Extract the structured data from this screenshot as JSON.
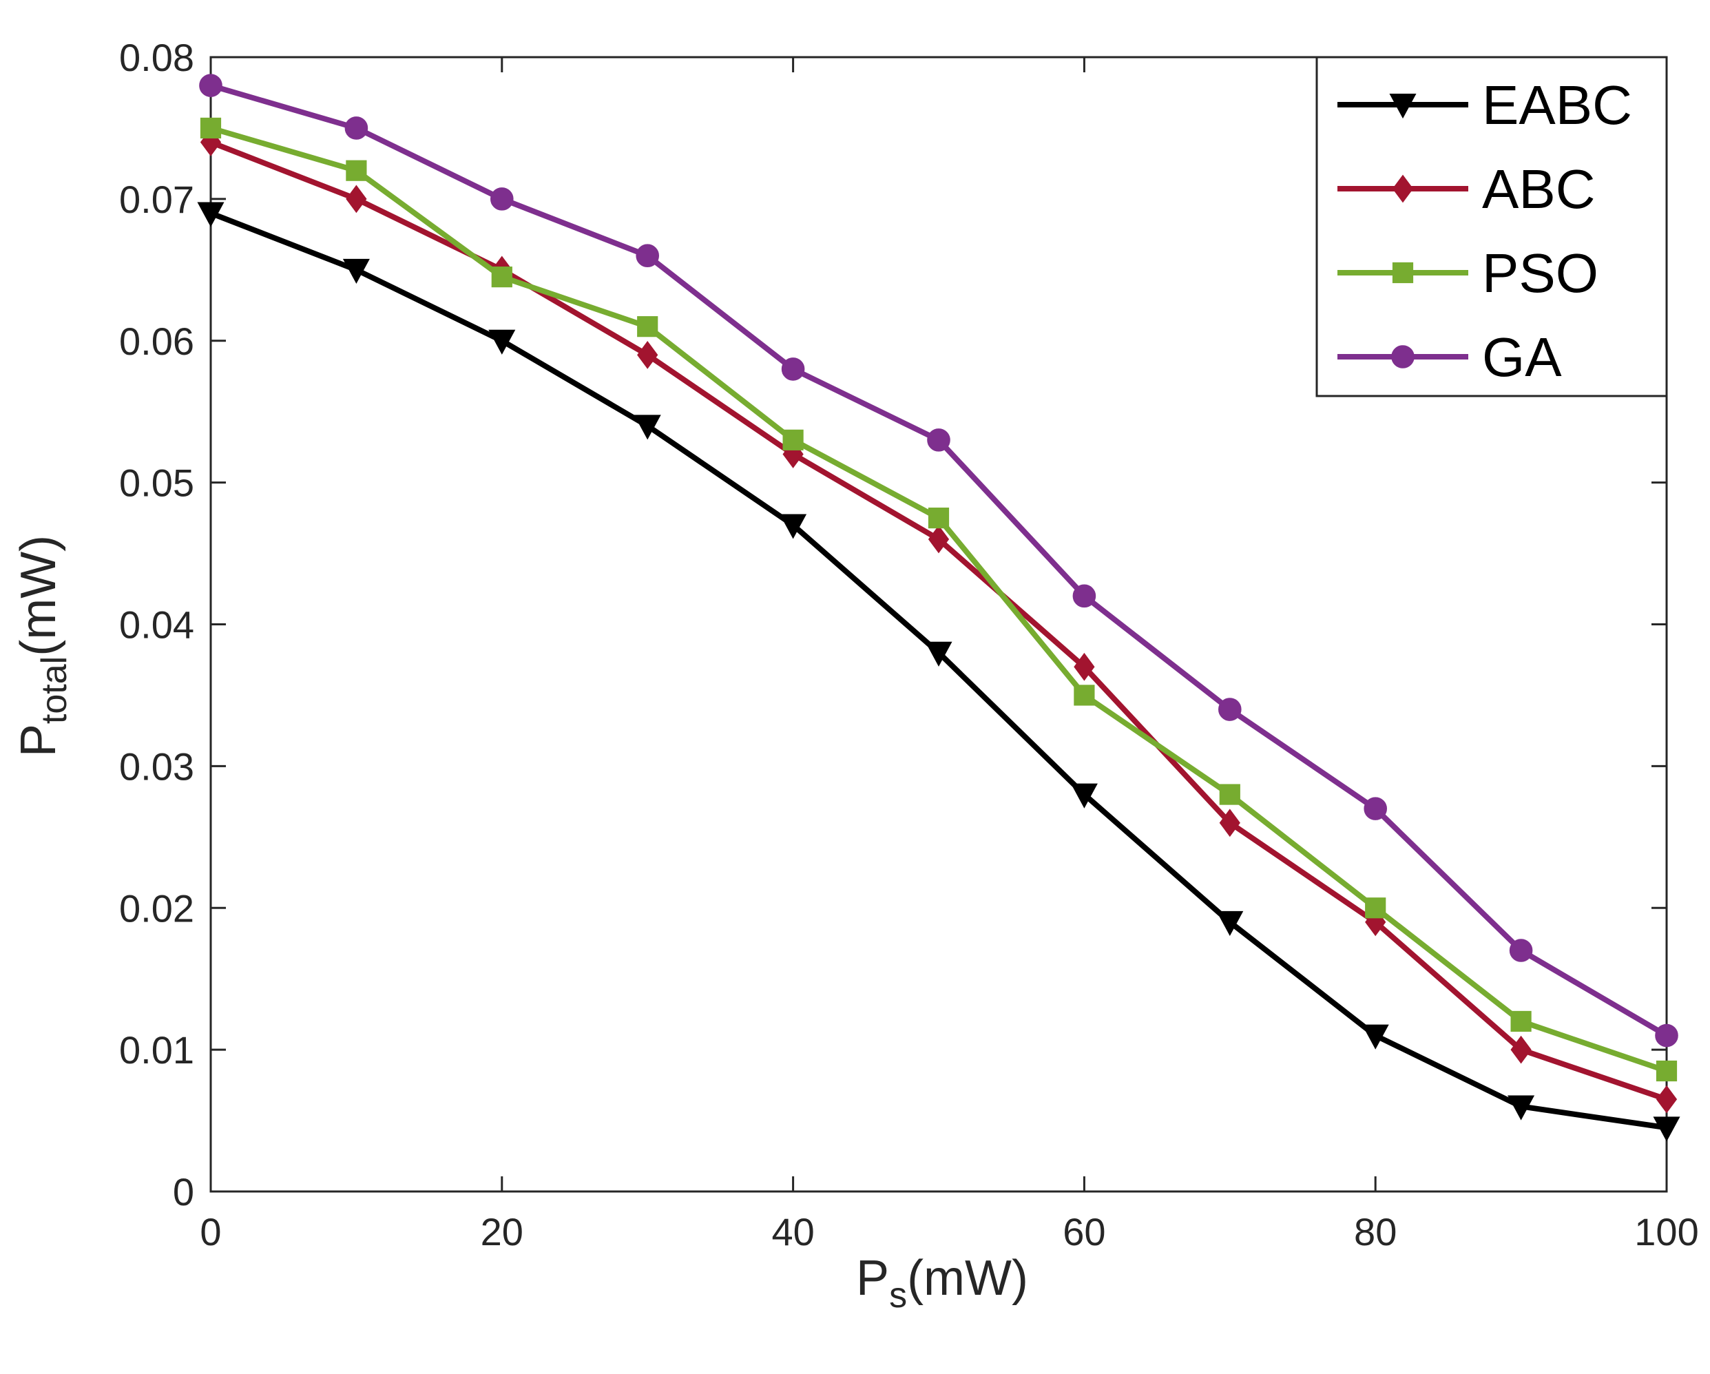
{
  "chart_data": {
    "type": "line",
    "title": "",
    "xlabel": {
      "main": "P",
      "sub": "s",
      "unit": "(mW)"
    },
    "ylabel": {
      "main": "P",
      "sub": "total",
      "unit": "(mW)"
    },
    "xlim": [
      0,
      100
    ],
    "ylim": [
      0,
      0.08
    ],
    "x_ticks": [
      0,
      20,
      40,
      60,
      80,
      100
    ],
    "x_tick_labels": [
      "0",
      "20",
      "40",
      "60",
      "80",
      "100"
    ],
    "y_ticks": [
      0,
      0.01,
      0.02,
      0.03,
      0.04,
      0.05,
      0.06,
      0.07,
      0.08
    ],
    "y_tick_labels": [
      "0",
      "0.01",
      "0.02",
      "0.03",
      "0.04",
      "0.05",
      "0.06",
      "0.07",
      "0.08"
    ],
    "grid": false,
    "legend_position": "top-right",
    "x": [
      0,
      10,
      20,
      30,
      40,
      50,
      60,
      70,
      80,
      90,
      100
    ],
    "series": [
      {
        "name": "EABC",
        "color": "#000000",
        "marker": "triangle-down",
        "values": [
          0.069,
          0.065,
          0.06,
          0.054,
          0.047,
          0.038,
          0.028,
          0.019,
          0.011,
          0.006,
          0.0045
        ]
      },
      {
        "name": "ABC",
        "color": "#A2142F",
        "marker": "diamond",
        "values": [
          0.074,
          0.07,
          0.065,
          0.059,
          0.052,
          0.046,
          0.037,
          0.026,
          0.019,
          0.01,
          0.0065
        ]
      },
      {
        "name": "PSO",
        "color": "#77AC30",
        "marker": "square",
        "values": [
          0.075,
          0.072,
          0.0645,
          0.061,
          0.053,
          0.0475,
          0.035,
          0.028,
          0.02,
          0.012,
          0.0085
        ]
      },
      {
        "name": "GA",
        "color": "#7E2F8E",
        "marker": "circle",
        "values": [
          0.078,
          0.075,
          0.07,
          0.066,
          0.058,
          0.053,
          0.042,
          0.034,
          0.027,
          0.017,
          0.011
        ]
      }
    ]
  }
}
